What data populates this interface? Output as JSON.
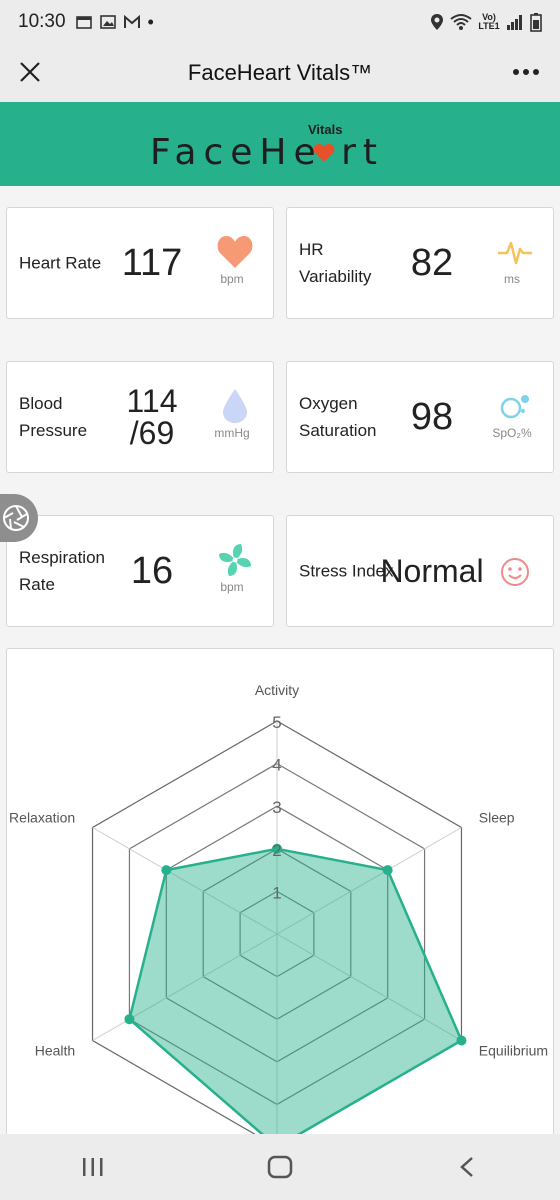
{
  "status_bar": {
    "time": "10:30",
    "dot": "•",
    "network": "Vo) LTE1"
  },
  "app_bar": {
    "title": "FaceHeart Vitals™"
  },
  "banner": {
    "brand": "FaceHe rt",
    "brand_sub": "Vitals",
    "brand_color": "#26b08c",
    "heart_color": "#e8502a"
  },
  "vitals": [
    {
      "label": "Heart Rate",
      "value": "117",
      "unit": "bpm",
      "icon": "heart-icon",
      "color": "#f59a74"
    },
    {
      "label": "HR Variability",
      "value": "82",
      "unit": "ms",
      "icon": "pulse-icon",
      "color": "#f5c35a"
    },
    {
      "label": "Blood Pressure",
      "value": "114 /69",
      "unit": "mmHg",
      "icon": "droplet-icon",
      "color": "#c9d6f5"
    },
    {
      "label": "Oxygen Saturation",
      "value": "98",
      "unit": "SpO₂%",
      "icon": "bubbles-icon",
      "color": "#7fd3e8"
    },
    {
      "label": "Respiration Rate",
      "value": "16",
      "unit": "bpm",
      "icon": "fan-icon",
      "color": "#58d3b2"
    },
    {
      "label": "Stress Index",
      "value": "Normal",
      "unit": "",
      "icon": "smile-icon",
      "color": "#f08a8a"
    }
  ],
  "chart_data": {
    "type": "radar",
    "axes": [
      "Activity",
      "Sleep",
      "Equilibrium",
      "",
      "Health",
      "Relaxation"
    ],
    "values": [
      2,
      3,
      5,
      5,
      4,
      3
    ],
    "rlim": [
      0,
      5
    ],
    "ticks": [
      "1",
      "2",
      "3",
      "4",
      "5"
    ],
    "fill_color": "#26b08c",
    "grid": true
  }
}
